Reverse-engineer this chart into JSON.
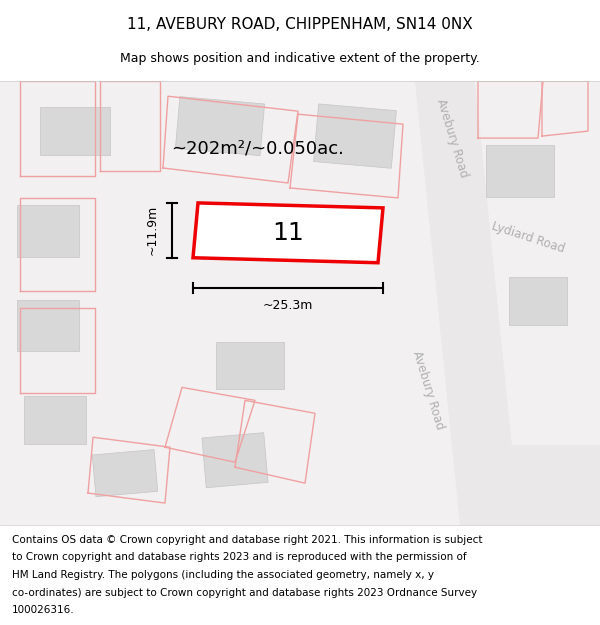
{
  "title": "11, AVEBURY ROAD, CHIPPENHAM, SN14 0NX",
  "subtitle": "Map shows position and indicative extent of the property.",
  "footer_lines": [
    "Contains OS data © Crown copyright and database right 2021. This information is subject",
    "to Crown copyright and database rights 2023 and is reproduced with the permission of",
    "HM Land Registry. The polygons (including the associated geometry, namely x, y",
    "co-ordinates) are subject to Crown copyright and database rights 2023 Ordnance Survey",
    "100026316."
  ],
  "area_label": "~202m²/~0.050ac.",
  "number_label": "11",
  "dim_width": "~25.3m",
  "dim_height": "~11.9m",
  "road_label_upper": "Avebury Road",
  "road_label_lower": "Avebury Road",
  "road_label_right": "Lydiard Road",
  "map_bg": "#f2f0f0",
  "road_fill": "#eae8e8",
  "building_fill": "#d8d8d8",
  "building_edge": "#c5c5c5",
  "plot_line_color": "#f0a0a0",
  "red_plot_color": "#ee0000",
  "title_fontsize": 11,
  "subtitle_fontsize": 9,
  "footer_fontsize": 7.5,
  "area_label_fontsize": 13,
  "number_fontsize": 18,
  "dim_fontsize": 9,
  "road_label_fontsize": 8.5
}
